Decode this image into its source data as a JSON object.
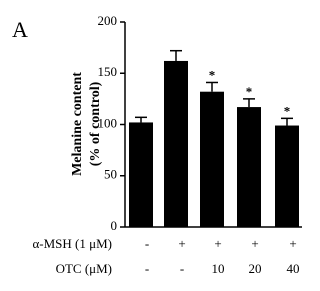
{
  "chart_data": {
    "type": "bar",
    "panel_label": "A",
    "y_label_lines": [
      "Melanine content",
      "(% of control)"
    ],
    "categories": [
      null,
      null,
      null,
      null,
      null
    ],
    "values": [
      102,
      162,
      132,
      117,
      99
    ],
    "errors": [
      5,
      10,
      9,
      8,
      7
    ],
    "significance": [
      null,
      null,
      "*",
      "*",
      "*"
    ],
    "color": "#000000",
    "ylim": [
      0,
      200
    ],
    "yticks": [
      0,
      50,
      100,
      150,
      200
    ],
    "condition_rows": [
      {
        "label": "α-MSH (1 μM)",
        "values": [
          "-",
          "+",
          "+",
          "+",
          "+"
        ]
      },
      {
        "label": "OTC (μM)",
        "values": [
          "-",
          "-",
          "10",
          "20",
          "40"
        ]
      }
    ]
  }
}
